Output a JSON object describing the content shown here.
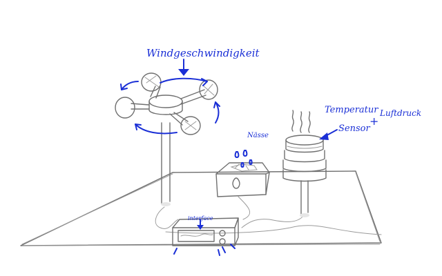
{
  "labels": {
    "wind_speed": "Windgeschwindigkeit",
    "rain": "Nässe",
    "temperature": "Temperatur",
    "sensor": "Sensor",
    "plus": "+",
    "air_pressure": "Luftdruck",
    "interface": "interface"
  },
  "colors": {
    "ink": "#1a2fd6",
    "pencil": "#6f6f6f",
    "background": "#ffffff"
  }
}
